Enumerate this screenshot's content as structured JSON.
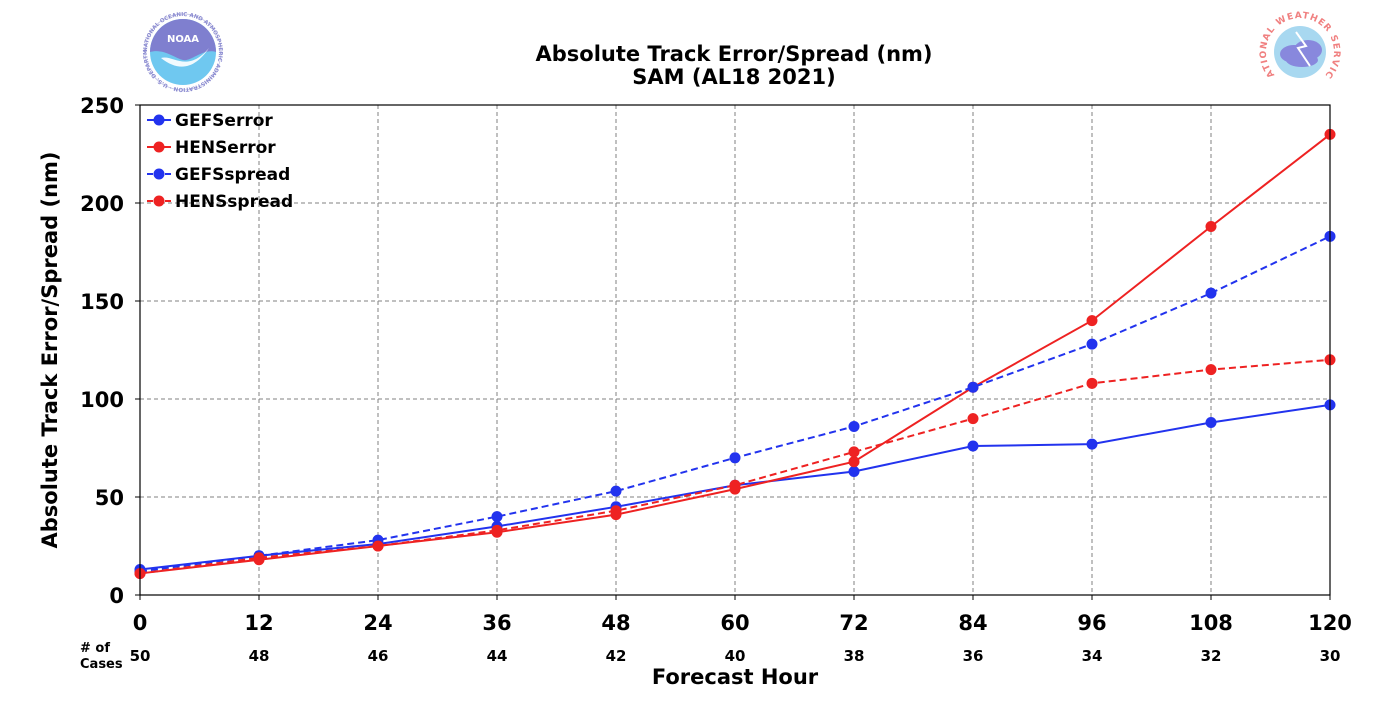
{
  "header": {
    "title_line1": "Absolute Track Error/Spread (nm)",
    "title_line2": "SAM (AL18 2021)"
  },
  "logos": {
    "left": {
      "name": "NOAA",
      "ring_text": "NATIONAL OCEANIC AND ATMOSPHERIC ADMINISTRATION · U.S. DEPARTMENT OF COMMERCE",
      "colors": {
        "top": "#7f7fcf",
        "bottom": "#6fc8f0",
        "ring": "#8a8ad0"
      }
    },
    "right": {
      "name": "NATIONAL WEATHER SERVICE",
      "colors": {
        "ring": "#f08080",
        "sky": "#a8d8f0",
        "cloud": "#8888dd"
      }
    }
  },
  "cases": {
    "header_line1": "# of",
    "header_line2": "Cases",
    "counts": [
      "50",
      "48",
      "46",
      "44",
      "42",
      "40",
      "38",
      "36",
      "34",
      "32",
      "30"
    ]
  },
  "chart_data": {
    "type": "line",
    "title": "Absolute Track Error/Spread (nm)\nSAM (AL18 2021)",
    "xlabel": "Forecast Hour",
    "ylabel": "Absolute Track Error/Spread (nm)",
    "x": [
      0,
      12,
      24,
      36,
      48,
      60,
      72,
      84,
      96,
      108,
      120
    ],
    "xlim": [
      0,
      120
    ],
    "ylim": [
      0,
      250
    ],
    "x_ticks": [
      0,
      12,
      24,
      36,
      48,
      60,
      72,
      84,
      96,
      108,
      120
    ],
    "y_ticks": [
      0,
      50,
      100,
      150,
      200,
      250
    ],
    "grid": true,
    "legend_position": "top-left",
    "series": [
      {
        "name": "GEFSerror",
        "color": "#2233ee",
        "dashed": false,
        "values": [
          13,
          20,
          26,
          35,
          45,
          56,
          63,
          76,
          77,
          88,
          97
        ]
      },
      {
        "name": "HENSerror",
        "color": "#ee2222",
        "dashed": false,
        "values": [
          11,
          18,
          25,
          32,
          41,
          54,
          68,
          106,
          140,
          188,
          235
        ]
      },
      {
        "name": "GEFSspread",
        "color": "#2233ee",
        "dashed": true,
        "values": [
          12,
          20,
          28,
          40,
          53,
          70,
          86,
          106,
          128,
          154,
          183
        ]
      },
      {
        "name": "HENSspread",
        "color": "#ee2222",
        "dashed": true,
        "values": [
          11,
          19,
          25,
          33,
          43,
          56,
          73,
          90,
          108,
          115,
          120
        ]
      }
    ]
  }
}
